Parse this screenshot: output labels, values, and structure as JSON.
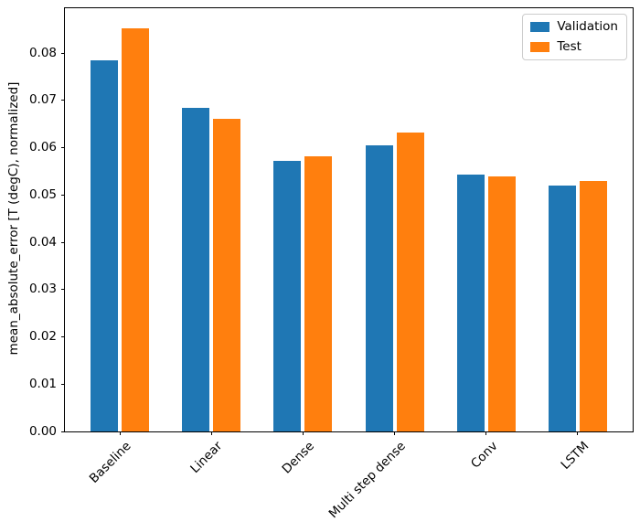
{
  "chart_data": {
    "type": "bar",
    "title": "",
    "xlabel": "",
    "ylabel": "mean_absolute_error [T (degC), normalized]",
    "categories": [
      "Baseline",
      "Linear",
      "Dense",
      "Multi step dense",
      "Conv",
      "LSTM"
    ],
    "series": [
      {
        "name": "Validation",
        "color": "#1f77b4",
        "offset": -0.17,
        "values": [
          0.0785,
          0.0684,
          0.0572,
          0.0605,
          0.0543,
          0.052
        ]
      },
      {
        "name": "Test",
        "color": "#ff7f0e",
        "offset": 0.17,
        "values": [
          0.0852,
          0.0661,
          0.0582,
          0.0632,
          0.054,
          0.053
        ]
      }
    ],
    "bar_width": 0.3,
    "xlim": [
      -0.6,
      5.6
    ],
    "ylim": [
      0,
      0.0895
    ],
    "yticks": [
      0.0,
      0.01,
      0.02,
      0.03,
      0.04,
      0.05,
      0.06,
      0.07,
      0.08
    ],
    "ytick_labels": [
      "0.00",
      "0.01",
      "0.02",
      "0.03",
      "0.04",
      "0.05",
      "0.06",
      "0.07",
      "0.08"
    ],
    "x_tick_rotation": 45,
    "grid": false,
    "legend_position": "upper right"
  }
}
